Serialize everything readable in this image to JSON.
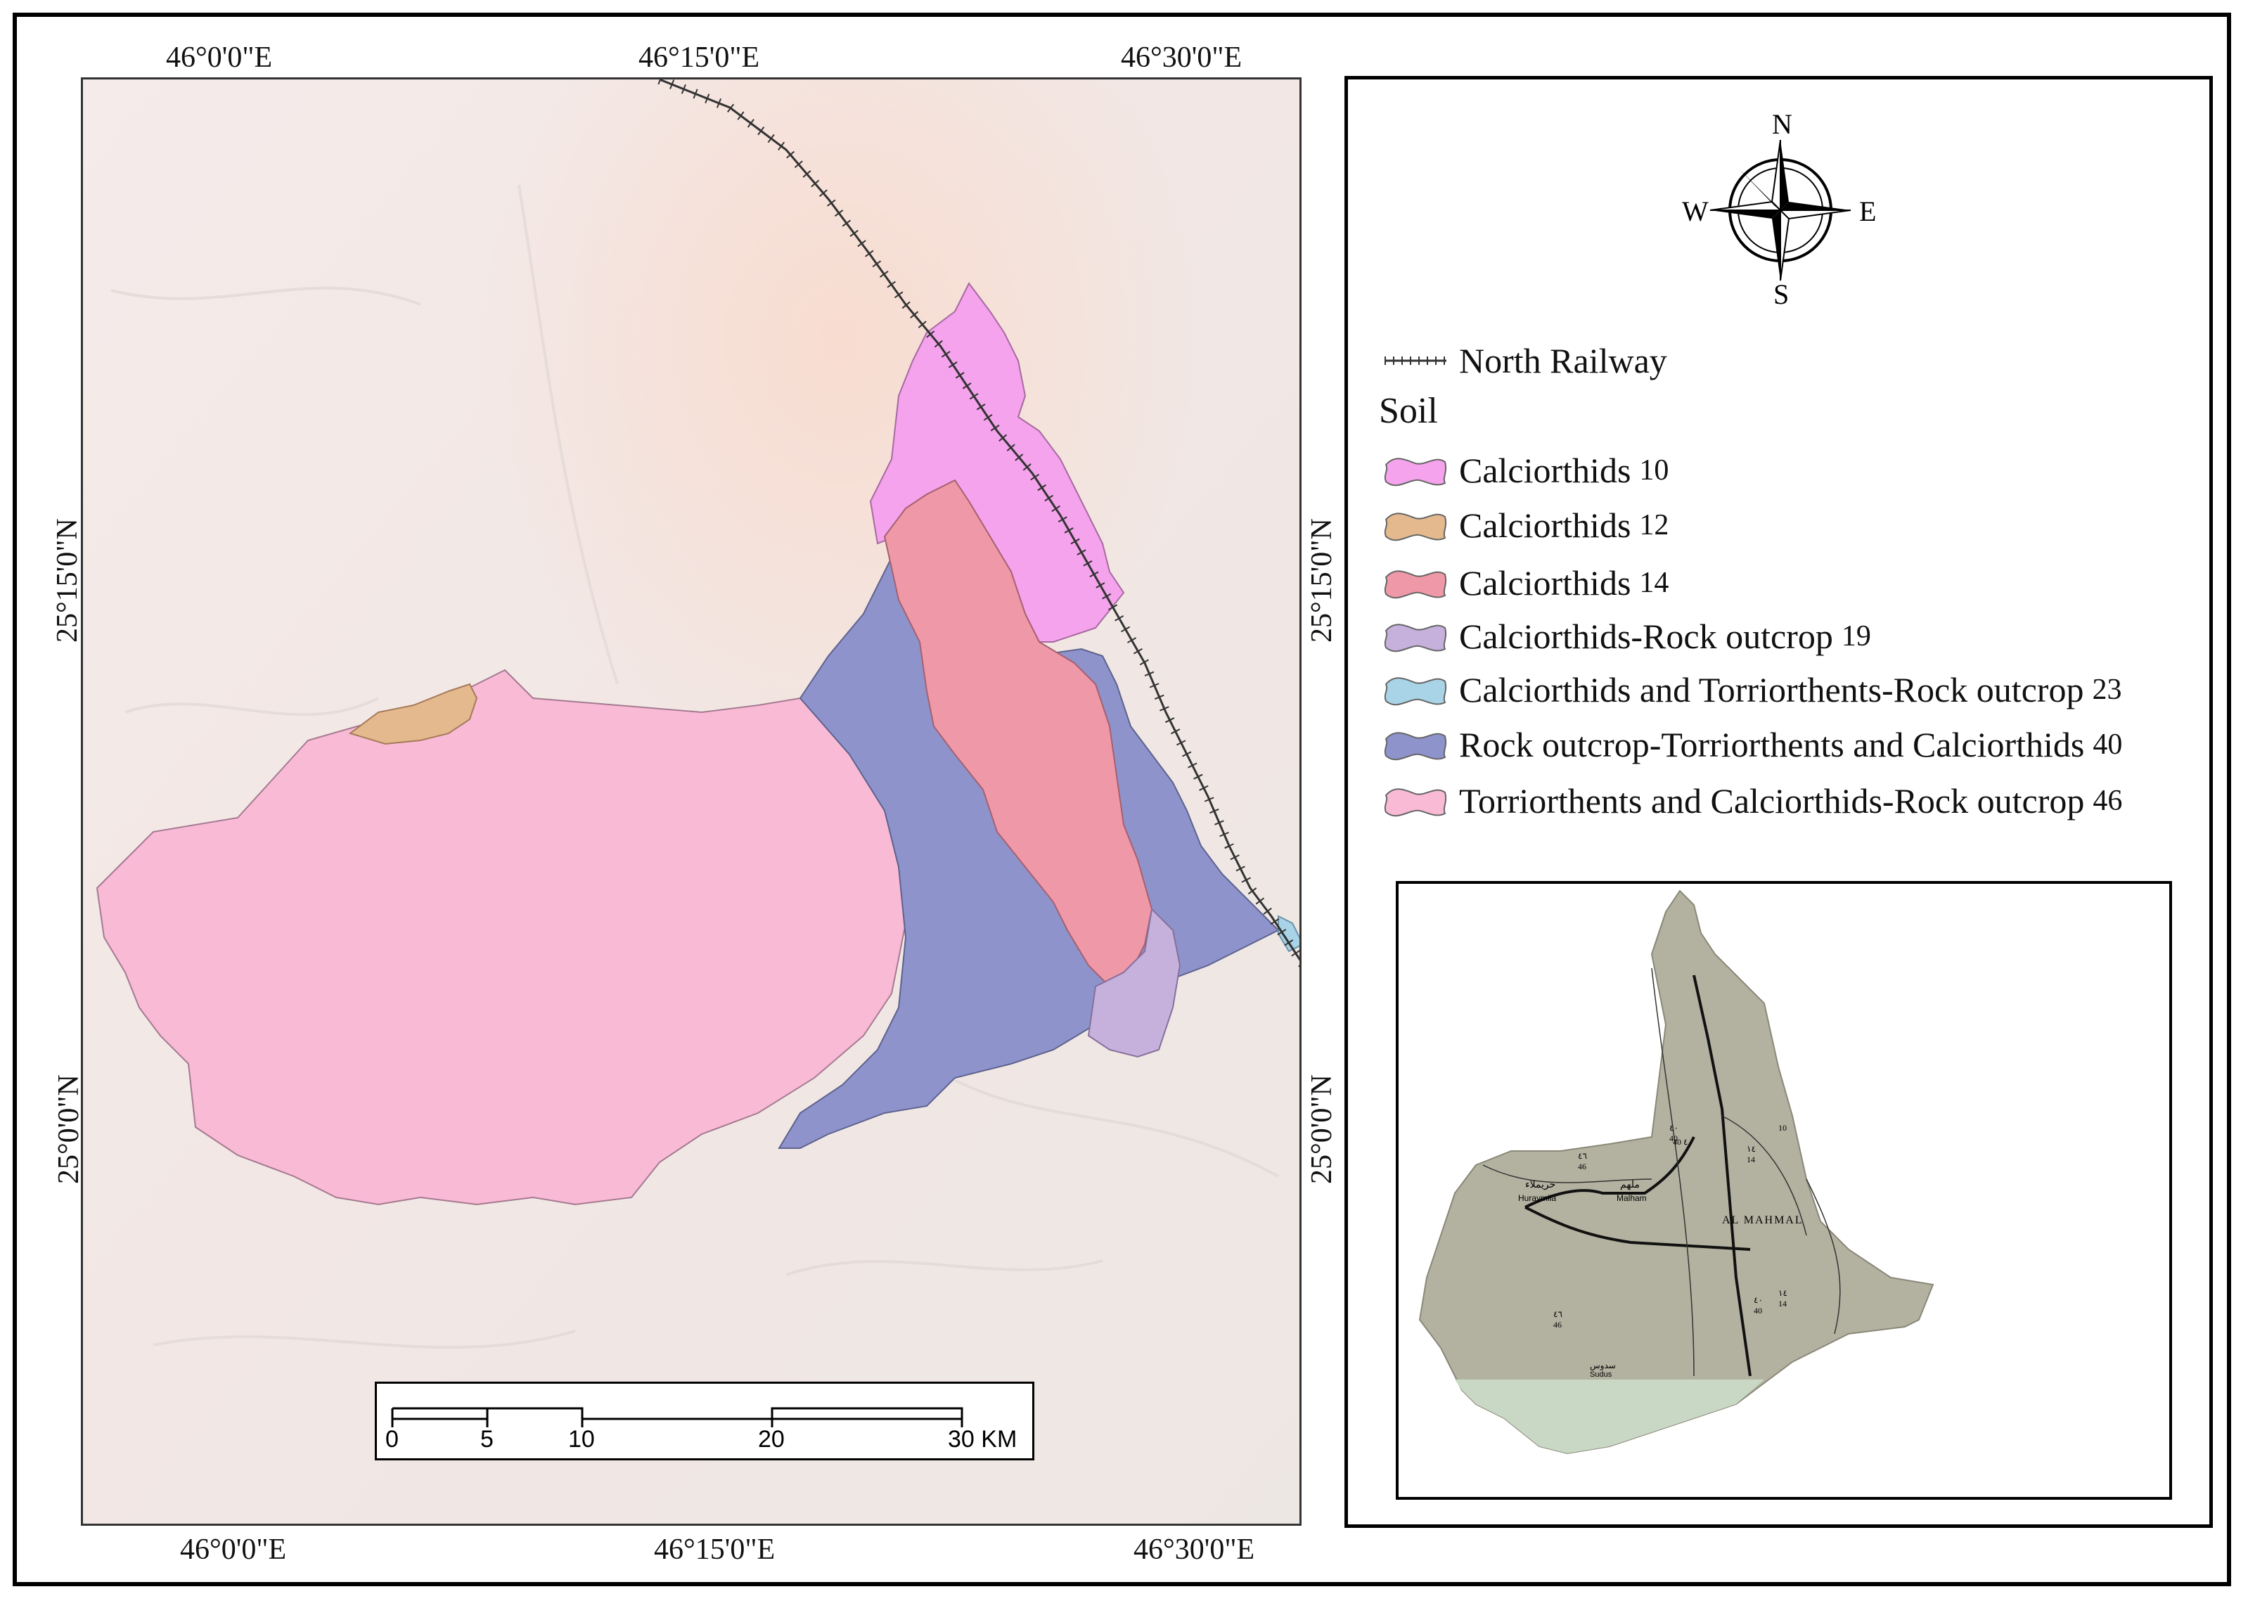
{
  "coordinates": {
    "top": [
      "46°0'0\"E",
      "46°15'0\"E",
      "46°30'0\"E"
    ],
    "bottom": [
      "46°0'0\"E",
      "46°15'0\"E",
      "46°30'0\"E"
    ],
    "left": [
      "25°15'0\"N",
      "25°0'0\"N"
    ],
    "right": [
      "25°15'0\"N",
      "25°0'0\"N"
    ]
  },
  "compass": {
    "north": "N",
    "south": "S",
    "east": "E",
    "west": "W"
  },
  "legend": {
    "railway_label": "North Railway",
    "soil_title": "Soil",
    "items": [
      {
        "label": "Calciorthids",
        "code": "10",
        "color": "#f4a3ec"
      },
      {
        "label": "Calciorthids",
        "code": "12",
        "color": "#e4b98e"
      },
      {
        "label": "Calciorthids",
        "code": "14",
        "color": "#ef98a8"
      },
      {
        "label": "Calciorthids-Rock outcrop",
        "code": "19",
        "color": "#c6b0dc"
      },
      {
        "label": "Calciorthids and Torriorthents-Rock outcrop",
        "code": "23",
        "color": "#a9d3e7"
      },
      {
        "label": "Rock outcrop-Torriorthents and Calciorthids",
        "code": "40",
        "color": "#8e93cc"
      },
      {
        "label": "Torriorthents and Calciorthids-Rock outcrop",
        "code": "46",
        "color": "#f9bad6"
      }
    ]
  },
  "scalebar": {
    "ticks": [
      "0",
      "5",
      "10",
      "20",
      "30 KM"
    ]
  },
  "inset": {
    "places": [
      "حريملاء",
      "Huraymila",
      "ملهم",
      "Malham",
      "AL MAHMAL",
      "سدوس",
      "Sudus"
    ],
    "codes": [
      "10",
      "40",
      "14",
      "46",
      "46",
      "40",
      "14",
      "40",
      "٤٠",
      "١٤",
      "٤٦",
      "٤٦",
      "٤٠",
      "١٤",
      "٤٠"
    ]
  }
}
